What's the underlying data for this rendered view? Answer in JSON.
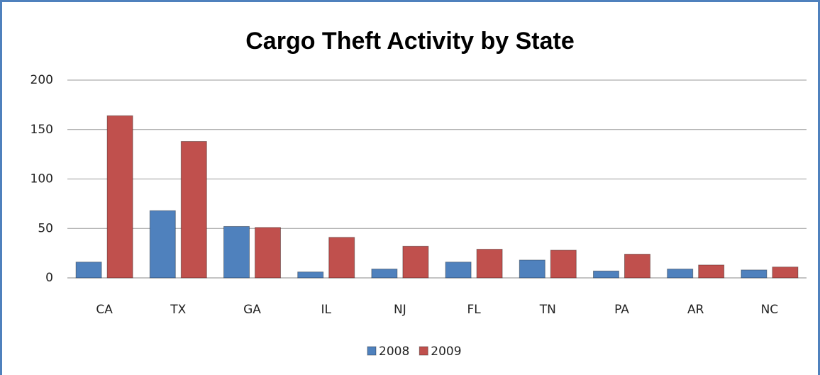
{
  "chart_data": {
    "type": "bar",
    "title": "Cargo Theft Activity by State",
    "categories": [
      "CA",
      "TX",
      "GA",
      "IL",
      "NJ",
      "FL",
      "TN",
      "PA",
      "AR",
      "NC"
    ],
    "series": [
      {
        "name": "2008",
        "color": "#4f81bd",
        "values": [
          16,
          68,
          52,
          6,
          9,
          16,
          18,
          7,
          9,
          8
        ]
      },
      {
        "name": "2009",
        "color": "#c0504d",
        "values": [
          164,
          138,
          51,
          41,
          32,
          29,
          28,
          24,
          13,
          11
        ]
      }
    ],
    "ylim": [
      0,
      200
    ],
    "yticks": [
      0,
      50,
      100,
      150,
      200
    ],
    "grid": true,
    "legend": "bottom"
  }
}
